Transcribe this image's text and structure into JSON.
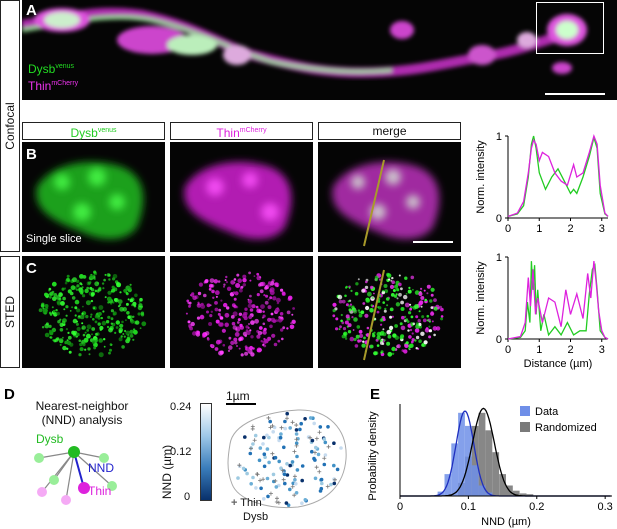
{
  "panels": {
    "A": {
      "letter": "A",
      "label_green": "Dysb",
      "label_green_sup": "venus",
      "label_magenta": "Thin",
      "label_magenta_sup": "mCherry"
    },
    "B": {
      "letter": "B",
      "single_slice": "Single slice"
    },
    "C": {
      "letter": "C"
    },
    "D": {
      "letter": "D",
      "title_line1": "Nearest-neighbor",
      "title_line2": "(NND) analysis",
      "dysb": "Dysb",
      "nnd": "NND",
      "thin": "Thin",
      "cb_label": "NND (µm)",
      "cb_ticks": [
        "0.24",
        "0.12",
        "0"
      ],
      "scale": "1µm",
      "legend_thin": "Thin",
      "legend_dysb": "Dysb"
    },
    "E": {
      "letter": "E"
    }
  },
  "columns": {
    "dysb": "Dysb",
    "dysb_sup": "venus",
    "thin": "Thin",
    "thin_sup": "mCherry",
    "merge": "merge"
  },
  "rows": {
    "confocal": "Confocal",
    "sted": "STED"
  },
  "colors": {
    "green": "#22dd22",
    "magenta": "#ee22ee",
    "line": "#a89a2a",
    "data_bar": "#6f8fe8",
    "rand_bar": "#7a7a7a",
    "fit_data": "#1f2fbf",
    "fit_rand": "#000000"
  },
  "chart_data": [
    {
      "type": "line",
      "panel": "B",
      "xlabel": "",
      "ylabel": "Norm. intensity",
      "xlim": [
        0,
        3.2
      ],
      "ylim": [
        0,
        1
      ],
      "xticks": [
        "0",
        "1",
        "2",
        "3"
      ],
      "yticks": [
        "0",
        "1"
      ],
      "series": [
        {
          "color": "#22cc22",
          "x": [
            0,
            0.3,
            0.5,
            0.65,
            0.75,
            0.82,
            0.9,
            1.0,
            1.2,
            1.4,
            1.6,
            1.8,
            2.0,
            2.1,
            2.2,
            2.4,
            2.6,
            2.75,
            2.85,
            2.95,
            3.1,
            3.2
          ],
          "y": [
            0.02,
            0.05,
            0.15,
            0.5,
            0.9,
            1.0,
            0.85,
            0.55,
            0.35,
            0.5,
            0.6,
            0.45,
            0.3,
            0.35,
            0.3,
            0.5,
            0.75,
            0.98,
            0.85,
            0.3,
            0.05,
            0.02
          ]
        },
        {
          "color": "#dd22dd",
          "x": [
            0,
            0.3,
            0.5,
            0.65,
            0.75,
            0.82,
            0.9,
            1.0,
            1.1,
            1.3,
            1.5,
            1.7,
            1.9,
            2.1,
            2.2,
            2.4,
            2.6,
            2.75,
            2.85,
            2.95,
            3.1,
            3.2
          ],
          "y": [
            0.02,
            0.06,
            0.2,
            0.55,
            0.85,
            0.95,
            0.9,
            0.7,
            0.8,
            0.75,
            0.55,
            0.45,
            0.4,
            0.65,
            0.5,
            0.55,
            0.8,
            1.0,
            0.9,
            0.4,
            0.06,
            0.02
          ]
        }
      ]
    },
    {
      "type": "line",
      "panel": "C",
      "xlabel": "Distance (µm)",
      "ylabel": "Norm. intensity",
      "xlim": [
        0,
        3.2
      ],
      "ylim": [
        0,
        1
      ],
      "xticks": [
        "0",
        "1",
        "2",
        "3"
      ],
      "yticks": [
        "0",
        "1"
      ],
      "series": [
        {
          "color": "#22cc22",
          "x": [
            0,
            0.4,
            0.55,
            0.62,
            0.7,
            0.75,
            0.8,
            0.85,
            0.9,
            0.95,
            1.05,
            1.15,
            1.3,
            1.5,
            1.7,
            1.9,
            2.1,
            2.3,
            2.5,
            2.6,
            2.7,
            2.78,
            2.85,
            2.95,
            3.1,
            3.2
          ],
          "y": [
            0.0,
            0.02,
            0.1,
            0.45,
            0.2,
            0.95,
            0.6,
            0.9,
            0.3,
            0.6,
            0.1,
            0.3,
            0.05,
            0.15,
            0.05,
            0.2,
            0.05,
            0.1,
            0.1,
            0.55,
            0.85,
            0.9,
            0.6,
            0.1,
            0.02,
            0.0
          ]
        },
        {
          "color": "#dd22dd",
          "x": [
            0,
            0.4,
            0.55,
            0.65,
            0.72,
            0.8,
            0.88,
            0.95,
            1.1,
            1.3,
            1.5,
            1.7,
            1.85,
            2.0,
            2.2,
            2.4,
            2.55,
            2.65,
            2.75,
            2.82,
            2.9,
            3.0,
            3.1,
            3.2
          ],
          "y": [
            0.0,
            0.03,
            0.2,
            0.75,
            0.4,
            0.85,
            0.3,
            0.5,
            0.2,
            0.5,
            0.45,
            0.15,
            0.6,
            0.3,
            0.55,
            0.25,
            0.8,
            0.5,
            0.95,
            0.7,
            0.35,
            0.1,
            0.02,
            0.0
          ]
        }
      ]
    },
    {
      "type": "bar",
      "panel": "E",
      "xlabel": "NND (µm)",
      "ylabel": "Probability density",
      "xlim": [
        0,
        0.31
      ],
      "xticks": [
        "0",
        "0.1",
        "0.2",
        "0.3"
      ],
      "legend": [
        "Data",
        "Randomized"
      ],
      "series": [
        {
          "name": "Data",
          "bin_centers": [
            0.06,
            0.07,
            0.08,
            0.09,
            0.1,
            0.11,
            0.12,
            0.13
          ],
          "values": [
            0.05,
            0.25,
            0.6,
            0.95,
            0.8,
            0.35,
            0.12,
            0.04
          ]
        },
        {
          "name": "Randomized",
          "bin_centers": [
            0.09,
            0.1,
            0.11,
            0.12,
            0.13,
            0.14,
            0.15,
            0.16,
            0.17,
            0.18,
            0.19
          ],
          "values": [
            0.15,
            0.45,
            0.8,
            0.95,
            0.75,
            0.5,
            0.25,
            0.12,
            0.06,
            0.03,
            0.02
          ]
        }
      ],
      "fits": [
        {
          "name": "Data",
          "mean": 0.095,
          "sd": 0.013,
          "peak": 0.97
        },
        {
          "name": "Randomized",
          "mean": 0.122,
          "sd": 0.016,
          "peak": 1.0
        }
      ]
    }
  ]
}
